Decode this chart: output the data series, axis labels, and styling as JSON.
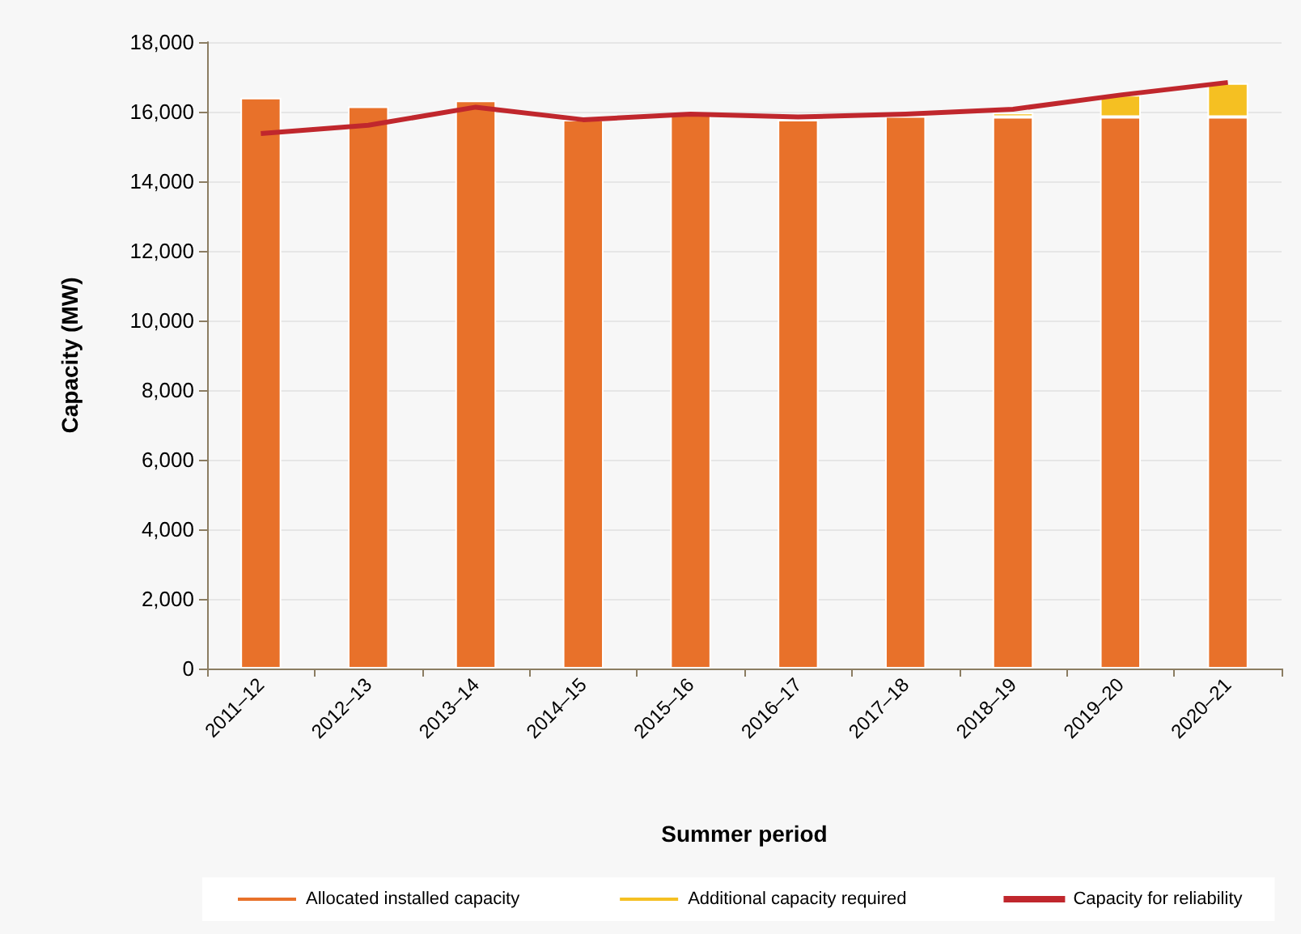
{
  "chart_data": {
    "type": "bar",
    "stacked": true,
    "xlabel": "Summer period",
    "ylabel": "Capacity (MW)",
    "categories": [
      "2011–12",
      "2012–13",
      "2013–14",
      "2014–15",
      "2015–16",
      "2016–17",
      "2017–18",
      "2018–19",
      "2019–20",
      "2020–21"
    ],
    "series": [
      {
        "name": "Allocated installed capacity",
        "color": "#e8712a",
        "values": [
          16400,
          16150,
          16320,
          15770,
          15910,
          15770,
          15870,
          15850,
          15850,
          15850
        ]
      },
      {
        "name": "Additional capacity required",
        "color": "#f5c022",
        "values": [
          null,
          null,
          null,
          null,
          null,
          null,
          null,
          120,
          630,
          970
        ]
      },
      {
        "name": "Capacity for reliability",
        "type": "line",
        "color": "#c0272d",
        "values": [
          15370,
          15610,
          16130,
          15770,
          15930,
          15850,
          15930,
          16070,
          16480,
          16840
        ]
      }
    ],
    "ylim": [
      0,
      18000
    ],
    "yticks": [
      0,
      {
        "value": 2000,
        "label": "2,000"
      },
      {
        "value": 4000,
        "label": "4,000"
      },
      {
        "value": 6000,
        "label": "6,000"
      },
      {
        "value": 8000,
        "label": "8,000"
      },
      {
        "value": 10000,
        "label": "10,000"
      },
      {
        "value": 12000,
        "label": "12,000"
      },
      {
        "value": 14000,
        "label": "14,000"
      },
      {
        "value": 16000,
        "label": "16,000"
      },
      {
        "value": 18000,
        "label": "18,000"
      }
    ],
    "grid": "y",
    "legend": "bottom",
    "marker": "none"
  }
}
